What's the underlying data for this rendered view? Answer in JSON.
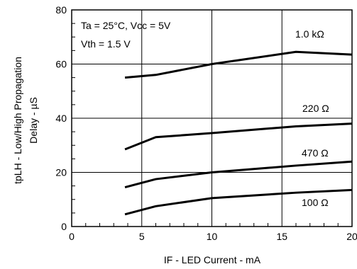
{
  "chart_data": {
    "type": "line",
    "xlabel": "IF - LED Current - mA",
    "ylabel_line1": "tpLH - Low/High Propagation",
    "ylabel_line2": "Delay - µS",
    "xlim": [
      0,
      20
    ],
    "ylim": [
      0,
      80
    ],
    "x_ticks": [
      0,
      5,
      10,
      15,
      20
    ],
    "y_ticks": [
      0,
      20,
      40,
      60,
      80
    ],
    "grid": true,
    "conditions": [
      "Ta = 25°C, Vcc = 5V",
      "Vth = 1.5 V"
    ],
    "series": [
      {
        "name": "1.0 kΩ",
        "x": [
          3.8,
          6,
          10,
          16,
          20
        ],
        "y": [
          55,
          56,
          60,
          64.5,
          63.5
        ]
      },
      {
        "name": "220 Ω",
        "x": [
          3.8,
          6,
          10,
          16,
          20
        ],
        "y": [
          28.5,
          33,
          34.5,
          37,
          38
        ]
      },
      {
        "name": "470 Ω",
        "x": [
          3.8,
          6,
          10,
          16,
          20
        ],
        "y": [
          14.5,
          17.5,
          20,
          22.5,
          24
        ]
      },
      {
        "name": "100 Ω",
        "x": [
          3.8,
          6,
          10,
          16,
          20
        ],
        "y": [
          4.5,
          7.5,
          10.5,
          12.5,
          13.5
        ]
      }
    ]
  }
}
